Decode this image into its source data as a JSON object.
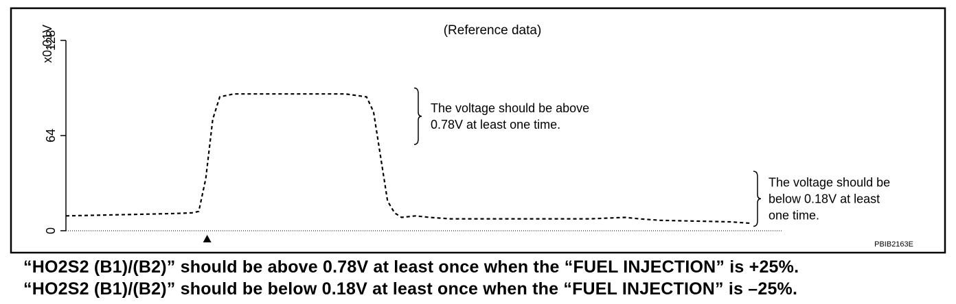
{
  "chart_data": {
    "type": "line",
    "title": "(Reference data)",
    "ylabel": "x0.01V",
    "xlabel": "",
    "ylim": [
      0,
      128
    ],
    "yticks": [
      0,
      64,
      128
    ],
    "grid": false,
    "series": [
      {
        "style": "dashed",
        "x": [
          0,
          5,
          10,
          15,
          18,
          19,
          20,
          21,
          22,
          24,
          26,
          30,
          35,
          40,
          43,
          44,
          45,
          46,
          47,
          48,
          50,
          52,
          55,
          60,
          65,
          70,
          75,
          80,
          82,
          85,
          90,
          95,
          98
        ],
        "y": [
          10,
          10.5,
          11,
          11.5,
          12,
          13,
          35,
          75,
          90,
          92,
          92,
          92,
          92,
          92,
          90,
          80,
          50,
          20,
          12,
          9,
          10,
          9,
          8,
          8,
          8,
          8,
          8,
          9,
          8,
          7,
          6.5,
          6,
          5
        ]
      }
    ],
    "marker": {
      "symbol": "triangle-up",
      "x": 20.2
    },
    "annotations": [
      {
        "lines": [
          "The voltage should be above",
          "0.78V at least one time."
        ],
        "y_range": [
          58,
          96
        ]
      },
      {
        "lines": [
          "The voltage should be",
          "below 0.18V at least",
          "one time."
        ],
        "y_range": [
          3,
          40
        ]
      }
    ],
    "footer_code": "PBIB2163E"
  },
  "captions": [
    "“HO2S2 (B1)/(B2)” should be above 0.78V at least once when the “FUEL INJECTION” is +25%.",
    "“HO2S2 (B1)/(B2)” should be below 0.18V at least once when the “FUEL INJECTION” is –25%."
  ]
}
